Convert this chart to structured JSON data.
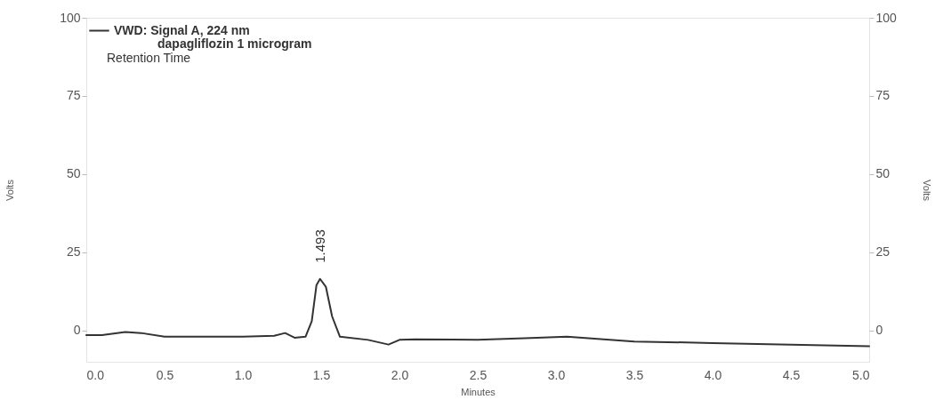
{
  "chart_data": {
    "type": "line",
    "xlabel": "Minutes",
    "ylabel": "Volts",
    "y2label": "Volts",
    "x": [
      0,
      0.1,
      0.25,
      0.35,
      0.5,
      1.0,
      1.2,
      1.27,
      1.33,
      1.4,
      1.44,
      1.47,
      1.493,
      1.53,
      1.57,
      1.62,
      1.8,
      1.93,
      2.0,
      2.1,
      2.5,
      2.8,
      3.07,
      3.5,
      4.0,
      4.5,
      5.0
    ],
    "series": [
      {
        "name": "VWD: Signal A, 224 nm",
        "color": "#333333",
        "values": [
          -1.5,
          -1.5,
          -0.5,
          -0.8,
          -2,
          -2,
          -1.7,
          -0.8,
          -2.3,
          -2,
          3,
          14.5,
          16.5,
          14,
          4.5,
          -2,
          -3,
          -4.5,
          -3,
          -2.8,
          -3,
          -2.5,
          -2,
          -3.5,
          -4,
          -4.5,
          -5
        ]
      }
    ],
    "xlim": [
      0,
      5
    ],
    "xticks": [
      {
        "value": 0,
        "label": "0.0"
      },
      {
        "value": 0.5,
        "label": "0.5"
      },
      {
        "value": 1,
        "label": "1.0"
      },
      {
        "value": 1.5,
        "label": "1.5"
      },
      {
        "value": 2,
        "label": "2.0"
      },
      {
        "value": 2.5,
        "label": "2.5"
      },
      {
        "value": 3,
        "label": "3.0"
      },
      {
        "value": 3.5,
        "label": "3.5"
      },
      {
        "value": 4,
        "label": "4.0"
      },
      {
        "value": 4.5,
        "label": "4.5"
      },
      {
        "value": 5,
        "label": "5.0"
      }
    ],
    "ylim": [
      -10,
      100
    ],
    "yticks": [
      0,
      25,
      50,
      75,
      100
    ],
    "y2lim": [
      -10,
      100
    ],
    "y2ticks": [
      0,
      25,
      50,
      75,
      100
    ],
    "annotations": [
      {
        "text": "1.493",
        "x": 1.493,
        "y": 16.5
      },
      "dapagliflozin  1 microgram",
      "Retention Time"
    ],
    "legend": "top left",
    "grid": false,
    "marker": "none",
    "line_style": "solid"
  }
}
